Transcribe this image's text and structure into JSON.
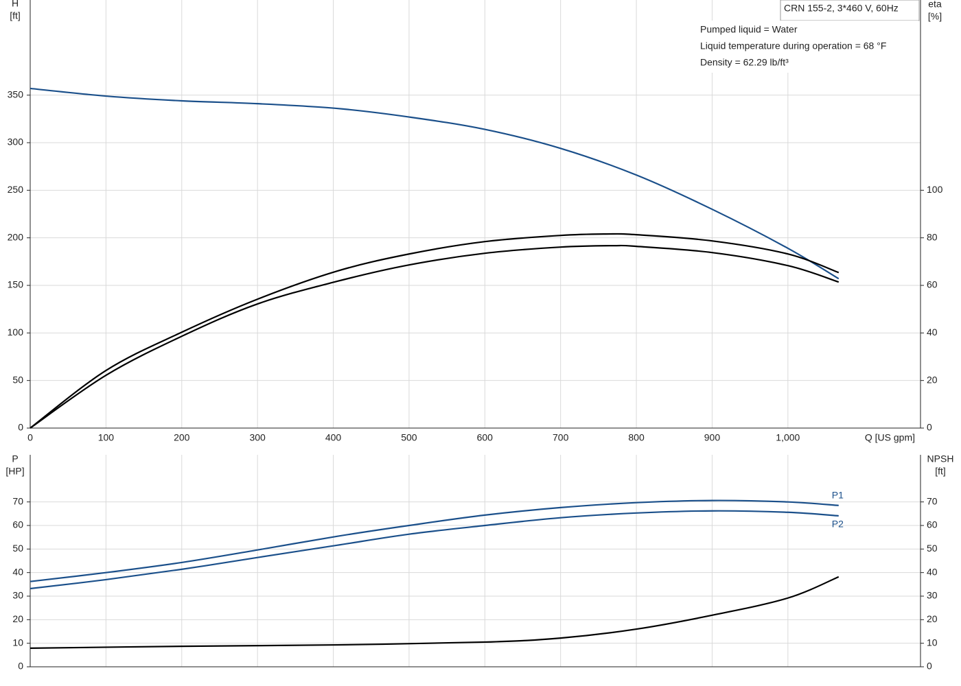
{
  "info": {
    "model": "CRN 155-2, 3*460 V, 60Hz",
    "lines": [
      "Pumped liquid = Water",
      "Liquid temperature during operation = 68 °F",
      "Density = 62.29 lb/ft³"
    ]
  },
  "chart_data": [
    {
      "type": "line",
      "ylabel": [
        "H",
        "[ft]"
      ],
      "y2label": [
        "eta",
        "[%]"
      ],
      "xlabel": "Q [US gpm]",
      "xlim": [
        0,
        1175
      ],
      "xticks": [
        0,
        100,
        200,
        300,
        400,
        500,
        600,
        700,
        800,
        900,
        {
          "value": 1000,
          "label": "1,000"
        }
      ],
      "ylim": [
        0,
        450
      ],
      "yticks": [
        0,
        50,
        100,
        150,
        200,
        250,
        300,
        350
      ],
      "y2lim": [
        0,
        180
      ],
      "y2ticks": [
        0,
        20,
        40,
        60,
        80,
        100
      ],
      "grid": true,
      "series": [
        {
          "color": "#1a4f8a",
          "x": [
            0,
            100,
            200,
            300,
            405,
            500,
            600,
            700,
            800,
            900,
            1000,
            1067
          ],
          "values": [
            357,
            349,
            344,
            341,
            336,
            327,
            314,
            294,
            266,
            230,
            189,
            157
          ]
        },
        {
          "color": "#000000",
          "axis": "y2",
          "x": [
            0,
            100,
            200,
            300,
            405,
            500,
            600,
            700,
            760,
            800,
            900,
            1000,
            1067
          ],
          "values": [
            0,
            24.2,
            40.3,
            54.2,
            66,
            73.2,
            78.4,
            81,
            81.6,
            81.3,
            78.7,
            73.2,
            65.4
          ]
        },
        {
          "color": "#000000",
          "axis": "y2",
          "x": [
            0,
            100,
            200,
            300,
            405,
            500,
            600,
            700,
            770,
            800,
            900,
            1000,
            1067
          ],
          "values": [
            0,
            22.2,
            38.6,
            52.2,
            61.7,
            68.6,
            73.5,
            76.1,
            76.7,
            76.4,
            73.8,
            68.3,
            61.4
          ]
        }
      ]
    },
    {
      "type": "line",
      "ylabel": [
        "P",
        "[HP]"
      ],
      "y2label": [
        "NPSH",
        "[ft]"
      ],
      "xlim": [
        0,
        1175
      ],
      "ylim": [
        0,
        90
      ],
      "yticks": [
        0,
        10,
        20,
        30,
        40,
        50,
        60,
        70
      ],
      "y2lim": [
        0,
        90
      ],
      "y2ticks": [
        0,
        10,
        20,
        30,
        40,
        50,
        60,
        70
      ],
      "grid": true,
      "series": [
        {
          "name": "P1",
          "color": "#1a4f8a",
          "x": [
            0,
            100,
            200,
            300,
            405,
            500,
            600,
            700,
            800,
            900,
            1000,
            1067
          ],
          "values": [
            36.2,
            40,
            44.3,
            49.6,
            55.4,
            60,
            64.4,
            67.6,
            69.7,
            70.6,
            70,
            68.5
          ]
        },
        {
          "name": "P2",
          "color": "#1a4f8a",
          "x": [
            0,
            100,
            200,
            300,
            405,
            500,
            600,
            700,
            800,
            900,
            1000,
            1067
          ],
          "values": [
            33.2,
            37,
            41.4,
            46.4,
            51.6,
            56.3,
            60,
            63.3,
            65.3,
            66.2,
            65.6,
            64.1
          ]
        },
        {
          "color": "#000000",
          "axis": "y2",
          "x": [
            0,
            200,
            405,
            600,
            700,
            800,
            900,
            1000,
            1067
          ],
          "values": [
            7.9,
            8.7,
            9.3,
            10.5,
            12.2,
            16,
            21.9,
            29.2,
            38.2
          ]
        }
      ]
    }
  ]
}
